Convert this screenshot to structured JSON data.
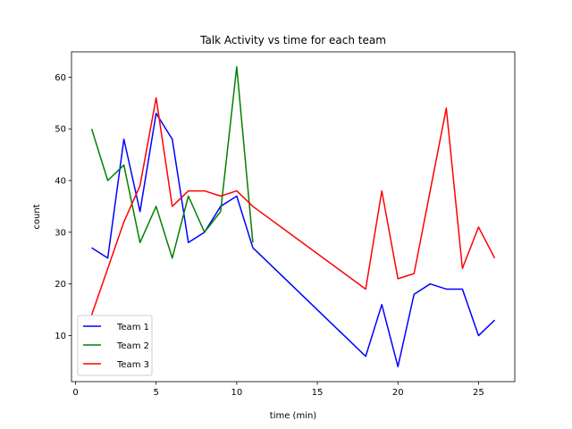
{
  "chart_data": {
    "type": "line",
    "title": "Talk Activity vs time for each team",
    "xlabel": "time (min)",
    "ylabel": "count",
    "xlim": [
      -0.25,
      27.25
    ],
    "ylim": [
      1.1,
      64.9
    ],
    "xticks": [
      0,
      5,
      10,
      15,
      20,
      25
    ],
    "yticks": [
      10,
      20,
      30,
      40,
      50,
      60
    ],
    "grid": false,
    "legend_position": "lower-left",
    "series": [
      {
        "name": "Team 1",
        "color": "#0000ff",
        "x": [
          1,
          2,
          3,
          4,
          5,
          6,
          7,
          8,
          9,
          10,
          11,
          18,
          19,
          20,
          21,
          22,
          23,
          24,
          25,
          26
        ],
        "y": [
          27,
          25,
          48,
          34,
          53,
          48,
          28,
          30,
          35,
          37,
          27,
          6,
          16,
          4,
          18,
          20,
          19,
          19,
          10,
          13
        ]
      },
      {
        "name": "Team 2",
        "color": "#008000",
        "x": [
          1,
          2,
          3,
          4,
          5,
          6,
          7,
          8,
          9,
          10,
          11
        ],
        "y": [
          50,
          40,
          43,
          28,
          35,
          25,
          37,
          30,
          34,
          62,
          28
        ]
      },
      {
        "name": "Team 3",
        "color": "#ff0000",
        "x": [
          1,
          3,
          4,
          5,
          6,
          7,
          8,
          9,
          10,
          11,
          18,
          19,
          20,
          21,
          22,
          23,
          24,
          25,
          26
        ],
        "y": [
          14,
          32,
          39,
          56,
          35,
          38,
          38,
          37,
          38,
          35,
          19,
          38,
          21,
          22,
          38,
          54,
          23,
          31,
          25
        ]
      }
    ]
  }
}
